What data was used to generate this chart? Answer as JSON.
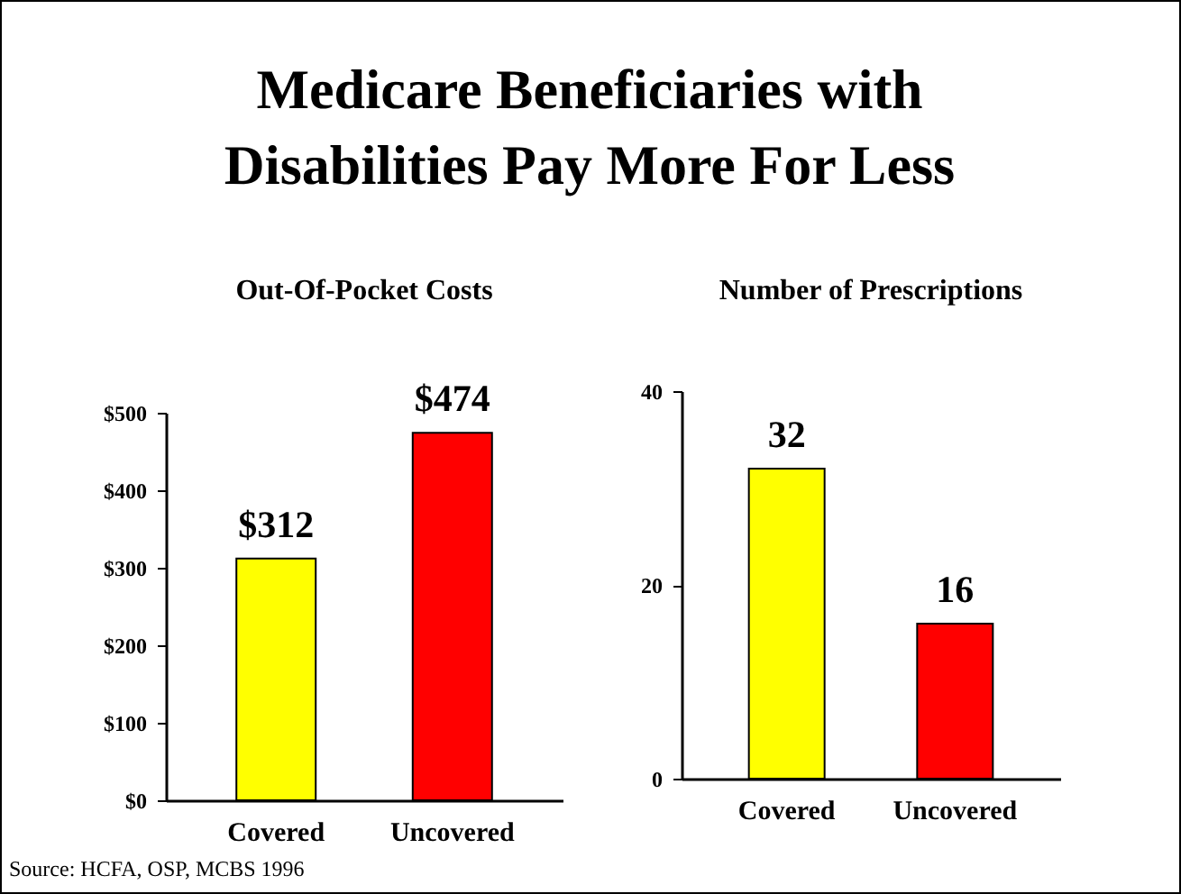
{
  "chart_data": [
    {
      "type": "other",
      "title": "Medicare Beneficiaries with Disabilities Pay More For Less",
      "annotations": [
        "Source: HCFA, OSP, MCBS 1996"
      ]
    },
    {
      "type": "bar",
      "title": "Out-Of-Pocket Costs",
      "categories": [
        "Covered",
        "Uncovered"
      ],
      "values": [
        312,
        474
      ],
      "colors": [
        "#ffff00",
        "#ff0000"
      ],
      "value_labels": [
        "$312",
        "$474"
      ],
      "ylim": [
        0,
        500
      ],
      "yticks": [
        {
          "value": 0,
          "label": "$0"
        },
        {
          "value": 100,
          "label": "$100"
        },
        {
          "value": 200,
          "label": "$200"
        },
        {
          "value": 300,
          "label": "$300"
        },
        {
          "value": 400,
          "label": "$400"
        },
        {
          "value": 500,
          "label": "$500"
        }
      ],
      "grid": false
    },
    {
      "type": "bar",
      "title": "Number of Prescriptions",
      "categories": [
        "Covered",
        "Uncovered"
      ],
      "values": [
        32,
        16
      ],
      "colors": [
        "#ffff00",
        "#ff0000"
      ],
      "data_labels": true,
      "ylim": [
        0,
        40
      ],
      "yticks": [
        0,
        20,
        40
      ],
      "grid": false
    }
  ]
}
